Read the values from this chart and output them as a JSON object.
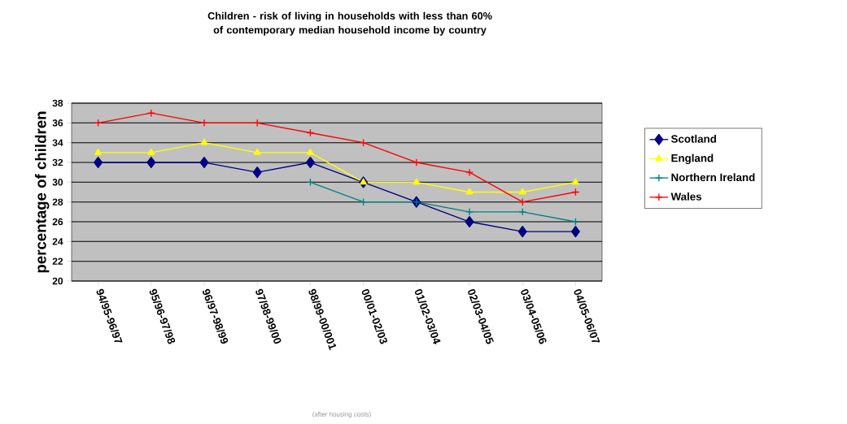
{
  "chart_data": {
    "type": "line",
    "title": "Children - risk of living in households with less than 60% of contemporary median household income by country",
    "ylabel": "percentage of children",
    "annotations": [
      "(after housing costs)"
    ],
    "categories": [
      "94/95-96/97",
      "95/96-97/98",
      "96/97-98/99",
      "97/98-99/00",
      "98/99-00/001",
      "00/01-02/03",
      "01/02-03/04",
      "02/03-04/05",
      "03/04-05/06",
      "04/05-06/07"
    ],
    "series": [
      {
        "name": "Scotland",
        "color": "#000080",
        "marker": "diamond",
        "values": [
          32,
          32,
          32,
          31,
          32,
          30,
          28,
          26,
          25,
          25
        ]
      },
      {
        "name": "England",
        "color": "#ffff00",
        "marker": "triangle",
        "values": [
          33,
          33,
          34,
          33,
          33,
          30,
          30,
          29,
          29,
          30
        ]
      },
      {
        "name": "Northern Ireland",
        "color": "#008080",
        "marker": "cross",
        "values": [
          null,
          null,
          null,
          null,
          30,
          28,
          28,
          27,
          27,
          26
        ]
      },
      {
        "name": "Wales",
        "color": "#ff0000",
        "marker": "cross",
        "values": [
          36,
          37,
          36,
          36,
          35,
          34,
          32,
          31,
          28,
          29
        ]
      }
    ],
    "ylim": [
      20,
      38
    ],
    "yticks": [
      20,
      22,
      24,
      26,
      28,
      30,
      32,
      34,
      36,
      38
    ],
    "grid": "y",
    "legend": "right",
    "line_style": "solid"
  }
}
